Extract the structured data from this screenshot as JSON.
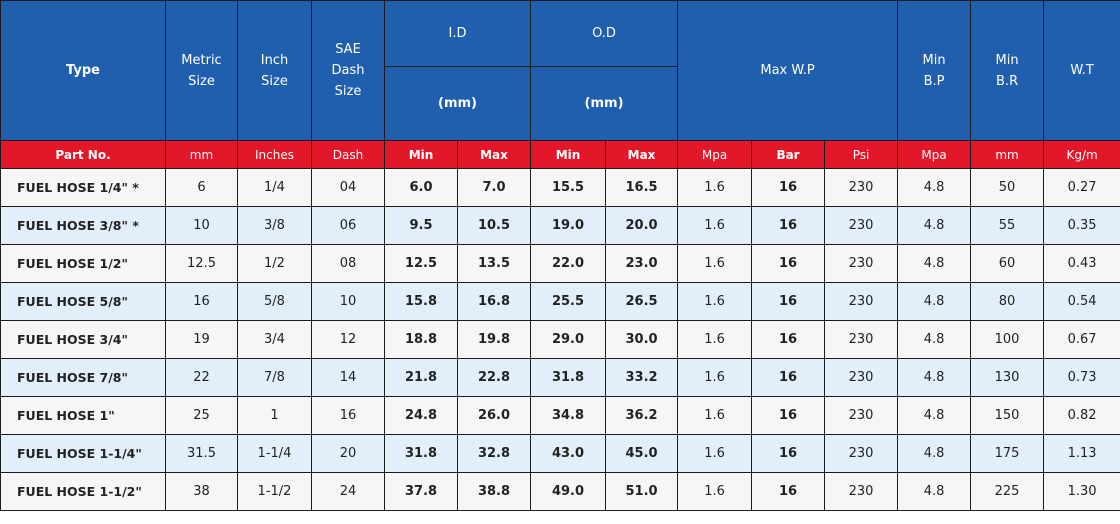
{
  "header": {
    "type": "Type",
    "metric_size": [
      "Metric",
      "Size"
    ],
    "inch_size": [
      "Inch",
      "Size"
    ],
    "sae_dash_size": [
      "SAE",
      "Dash",
      "Size"
    ],
    "id": "I.D",
    "od": "O.D",
    "id_unit": "(mm)",
    "od_unit": "(mm)",
    "max_wp": "Max W.P",
    "min_bp": [
      "Min",
      "B.P"
    ],
    "min_br": [
      "Min",
      "B.R"
    ],
    "wt": "W.T"
  },
  "units": [
    "Part No.",
    "mm",
    "Inches",
    "Dash",
    "Min",
    "Max",
    "Min",
    "Max",
    "Mpa",
    "Bar",
    "Psi",
    "Mpa",
    "mm",
    "Kg/m"
  ],
  "colors": {
    "header_blue": "#1f5fae",
    "unit_red": "#e3172a",
    "row_alt": "#e2effb",
    "row_base": "#f6f6f6"
  },
  "rows": [
    [
      "FUEL HOSE 1/4\" *",
      "6",
      "1/4",
      "04",
      "6.0",
      "7.0",
      "15.5",
      "16.5",
      "1.6",
      "16",
      "230",
      "4.8",
      "50",
      "0.27"
    ],
    [
      "FUEL HOSE 3/8\" *",
      "10",
      "3/8",
      "06",
      "9.5",
      "10.5",
      "19.0",
      "20.0",
      "1.6",
      "16",
      "230",
      "4.8",
      "55",
      "0.35"
    ],
    [
      "FUEL HOSE 1/2\"",
      "12.5",
      "1/2",
      "08",
      "12.5",
      "13.5",
      "22.0",
      "23.0",
      "1.6",
      "16",
      "230",
      "4.8",
      "60",
      "0.43"
    ],
    [
      "FUEL HOSE 5/8\"",
      "16",
      "5/8",
      "10",
      "15.8",
      "16.8",
      "25.5",
      "26.5",
      "1.6",
      "16",
      "230",
      "4.8",
      "80",
      "0.54"
    ],
    [
      "FUEL HOSE 3/4\"",
      "19",
      "3/4",
      "12",
      "18.8",
      "19.8",
      "29.0",
      "30.0",
      "1.6",
      "16",
      "230",
      "4.8",
      "100",
      "0.67"
    ],
    [
      "FUEL HOSE 7/8\"",
      "22",
      "7/8",
      "14",
      "21.8",
      "22.8",
      "31.8",
      "33.2",
      "1.6",
      "16",
      "230",
      "4.8",
      "130",
      "0.73"
    ],
    [
      "FUEL HOSE 1\"",
      "25",
      "1",
      "16",
      "24.8",
      "26.0",
      "34.8",
      "36.2",
      "1.6",
      "16",
      "230",
      "4.8",
      "150",
      "0.82"
    ],
    [
      "FUEL HOSE 1-1/4\"",
      "31.5",
      "1-1/4",
      "20",
      "31.8",
      "32.8",
      "43.0",
      "45.0",
      "1.6",
      "16",
      "230",
      "4.8",
      "175",
      "1.13"
    ],
    [
      "FUEL HOSE 1-1/2\"",
      "38",
      "1-1/2",
      "24",
      "37.8",
      "38.8",
      "49.0",
      "51.0",
      "1.6",
      "16",
      "230",
      "4.8",
      "225",
      "1.30"
    ]
  ]
}
